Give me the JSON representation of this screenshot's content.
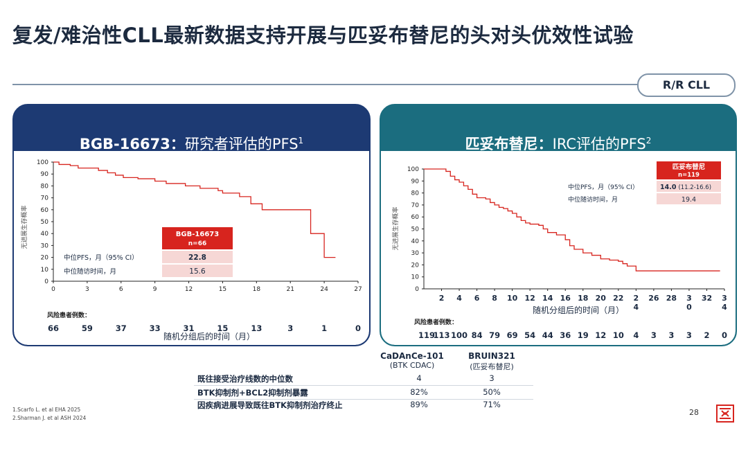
{
  "title": "复发/难治性CLL最新数据支持开展与匹妥布替尼的头对头优效性试验",
  "tag": "R/R CLL",
  "colors": {
    "left_header": "#1d3a73",
    "right_header": "#1b6d7f",
    "curve": "#d7241e",
    "box_head": "#d7241e",
    "box_fill": "#f6d7d5"
  },
  "left_panel": {
    "title_bold": "BGB-16673：",
    "title_rest": "研究者评估的PFS",
    "title_sup": "1",
    "ylabel": "无进展生存概率",
    "xlabel": "随机分组后的时间（月）",
    "box_head1": "BGB-16673",
    "box_head2": "n=66",
    "row1_label": "中位PFS，月（95% CI）",
    "row1_value": "22.8",
    "row2_label": "中位随访时间，月",
    "row2_value": "15.6",
    "risk_label": "风险患者例数："
  },
  "right_panel": {
    "title_bold": "匹妥布替尼：",
    "title_rest": "IRC评估的PFS",
    "title_sup": "2",
    "ylabel": "无进展生存概率",
    "xlabel": "随机分组后的时间（月）",
    "box_head1": "匹妥布替尼",
    "box_head2": "n=119",
    "row1_label": "中位PFS，月（95% CI）",
    "row1_value_bold": "14.0",
    "row1_value_rest": "(11.2-16.6)",
    "row2_label": "中位随访时间，月",
    "row2_value": "19.4",
    "risk_label": "风险患者例数："
  },
  "chart_data": [
    {
      "type": "line",
      "name": "BGB-16673 PFS",
      "xlabel": "随机分组后的时间（月）",
      "ylabel": "无进展生存概率",
      "xlim": [
        0,
        27
      ],
      "ylim": [
        0,
        100
      ],
      "x_ticks": [
        "0",
        "3",
        "6",
        "9",
        "12",
        "15",
        "18",
        "21",
        "24",
        "27"
      ],
      "y_ticks": [
        "0",
        "10",
        "20",
        "30",
        "40",
        "50",
        "60",
        "70",
        "80",
        "90",
        "100"
      ],
      "grid": false,
      "series": [
        {
          "x": [
            0,
            0.5,
            1.5,
            2.2,
            4,
            4.8,
            5.5,
            6.2,
            7.5,
            9,
            10,
            11.7,
            13,
            14.6,
            15,
            16.5,
            17.5,
            18.5,
            20,
            21,
            22,
            22.8,
            23.8,
            24,
            25
          ],
          "y": [
            100,
            98,
            97,
            95,
            93,
            91,
            89,
            87,
            86,
            84,
            82,
            80,
            78,
            76,
            74,
            71,
            65,
            60,
            60,
            60,
            60,
            40,
            40,
            20,
            20
          ]
        }
      ],
      "risk_table": {
        "x": [
          0,
          3,
          6,
          9,
          12,
          15,
          18,
          21,
          24,
          27
        ],
        "n": [
          "66",
          "59",
          "37",
          "33",
          "31",
          "15",
          "13",
          "3",
          "1",
          "0"
        ]
      }
    },
    {
      "type": "line",
      "name": "匹妥布替尼 PFS",
      "xlabel": "随机分组后的时间（月）",
      "ylabel": "无进展生存概率",
      "xlim": [
        0,
        34
      ],
      "ylim": [
        0,
        100
      ],
      "x_ticks": [
        "2",
        "4",
        "6",
        "8",
        "10",
        "12",
        "14",
        "16",
        "18",
        "20",
        "22",
        "24",
        "26",
        "28",
        "30",
        "32",
        "34"
      ],
      "x_ticks_display": [
        "2",
        "4",
        "6",
        "8",
        "10",
        "12",
        "14",
        "16",
        "18",
        "20",
        "22",
        "2\n4",
        "26",
        "28",
        "3\n0",
        "32",
        "3\n4"
      ],
      "y_ticks": [
        "0",
        "10",
        "20",
        "30",
        "40",
        "50",
        "60",
        "70",
        "80",
        "90",
        "100"
      ],
      "grid": false,
      "series": [
        {
          "x": [
            0,
            2,
            2.5,
            3,
            3.5,
            4,
            4.5,
            5,
            5.5,
            6,
            7,
            7.5,
            8,
            8.5,
            9,
            9.5,
            10,
            10.5,
            11,
            11.5,
            12,
            13,
            13.5,
            14,
            15,
            16,
            16.5,
            17,
            18,
            19,
            20,
            21,
            22,
            22.5,
            23,
            24,
            26,
            28,
            30,
            32,
            33.5
          ],
          "y": [
            100,
            100,
            98,
            94,
            91,
            89,
            86,
            83,
            79,
            76,
            75,
            72,
            70,
            68,
            67,
            65,
            63,
            60,
            57,
            55,
            54,
            53,
            50,
            47,
            45,
            41,
            36,
            33,
            30,
            28,
            25,
            24,
            23,
            21,
            19,
            15,
            15,
            15,
            15,
            15,
            15
          ]
        }
      ],
      "risk_table": {
        "x": [
          0,
          2,
          4,
          6,
          8,
          10,
          12,
          14,
          16,
          18,
          20,
          22,
          24,
          26,
          28,
          30,
          32,
          34
        ],
        "n": [
          "119",
          "113",
          "100",
          "84",
          "79",
          "69",
          "54",
          "44",
          "36",
          "19",
          "12",
          "10",
          "4",
          "3",
          "3",
          "3",
          "2",
          "0"
        ]
      }
    }
  ],
  "table": {
    "col1_head": "CaDAnCe-101",
    "col1_sub": "(BTK CDAC)",
    "col2_head": "BRUIN321",
    "col2_sub": "(匹妥布替尼)",
    "rows": [
      {
        "label": "既往接受治疗线数的中位数",
        "v1": "4",
        "v2": "3"
      },
      {
        "label": "BTK抑制剂+BCL2抑制剂暴露",
        "v1": "82%",
        "v2": "50%"
      },
      {
        "label": "因疾病进展导致既往BTK抑制剂治疗终止",
        "v1": "89%",
        "v2": "71%"
      }
    ]
  },
  "refs": [
    "1.Scarfo L. et al EHA 2025",
    "2.Sharman J. et al ASH 2024"
  ],
  "page_number": "28",
  "logo_icon": "company-logo-icon"
}
